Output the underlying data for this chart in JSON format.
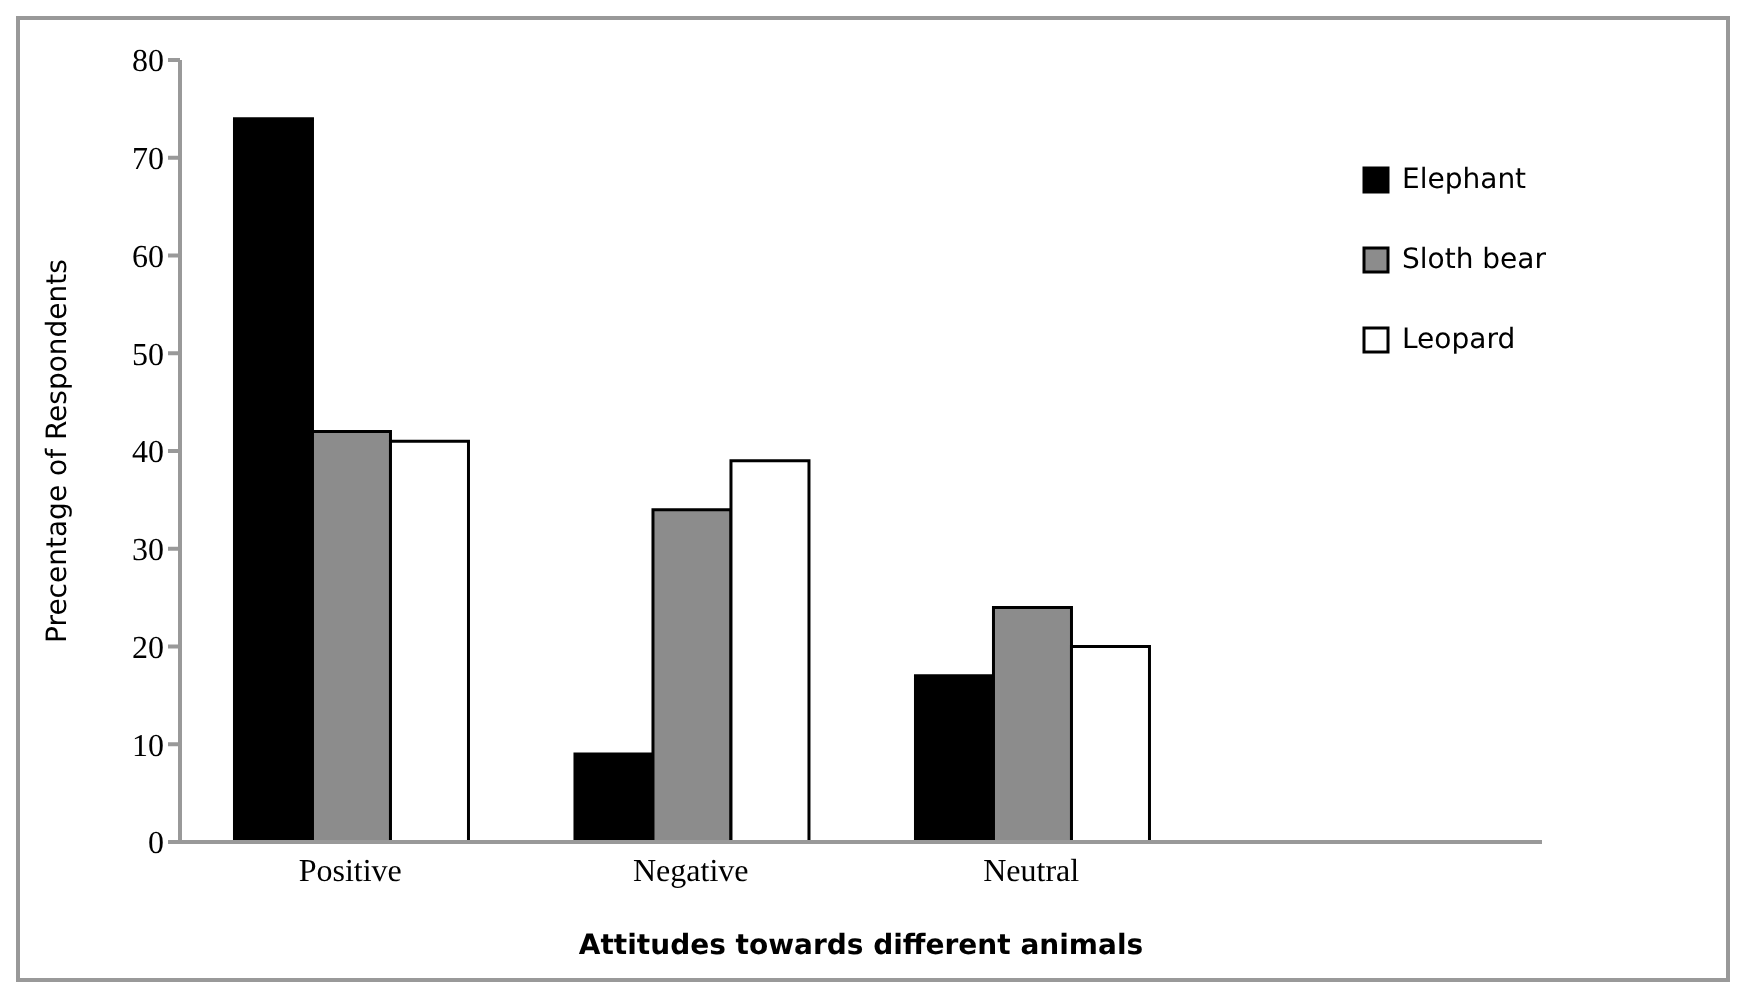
{
  "chart_data": {
    "type": "bar",
    "xlabel": "Attitudes towards different animals",
    "ylabel": "Precentage of Respondents",
    "categories": [
      "Positive",
      "Negative",
      "Neutral",
      null
    ],
    "series": [
      {
        "name": "Elephant",
        "color": "#000000",
        "values": [
          74,
          9,
          17,
          null
        ]
      },
      {
        "name": "Sloth bear",
        "color": "#8c8c8c",
        "values": [
          42,
          34,
          24,
          null
        ]
      },
      {
        "name": "Leopard",
        "color": "#ffffff",
        "values": [
          41,
          39,
          20,
          null
        ]
      }
    ],
    "ylim": [
      0,
      80
    ],
    "yticks": [
      0,
      10,
      20,
      30,
      40,
      50,
      60,
      70,
      80
    ],
    "grid": false,
    "legend": "top right"
  }
}
